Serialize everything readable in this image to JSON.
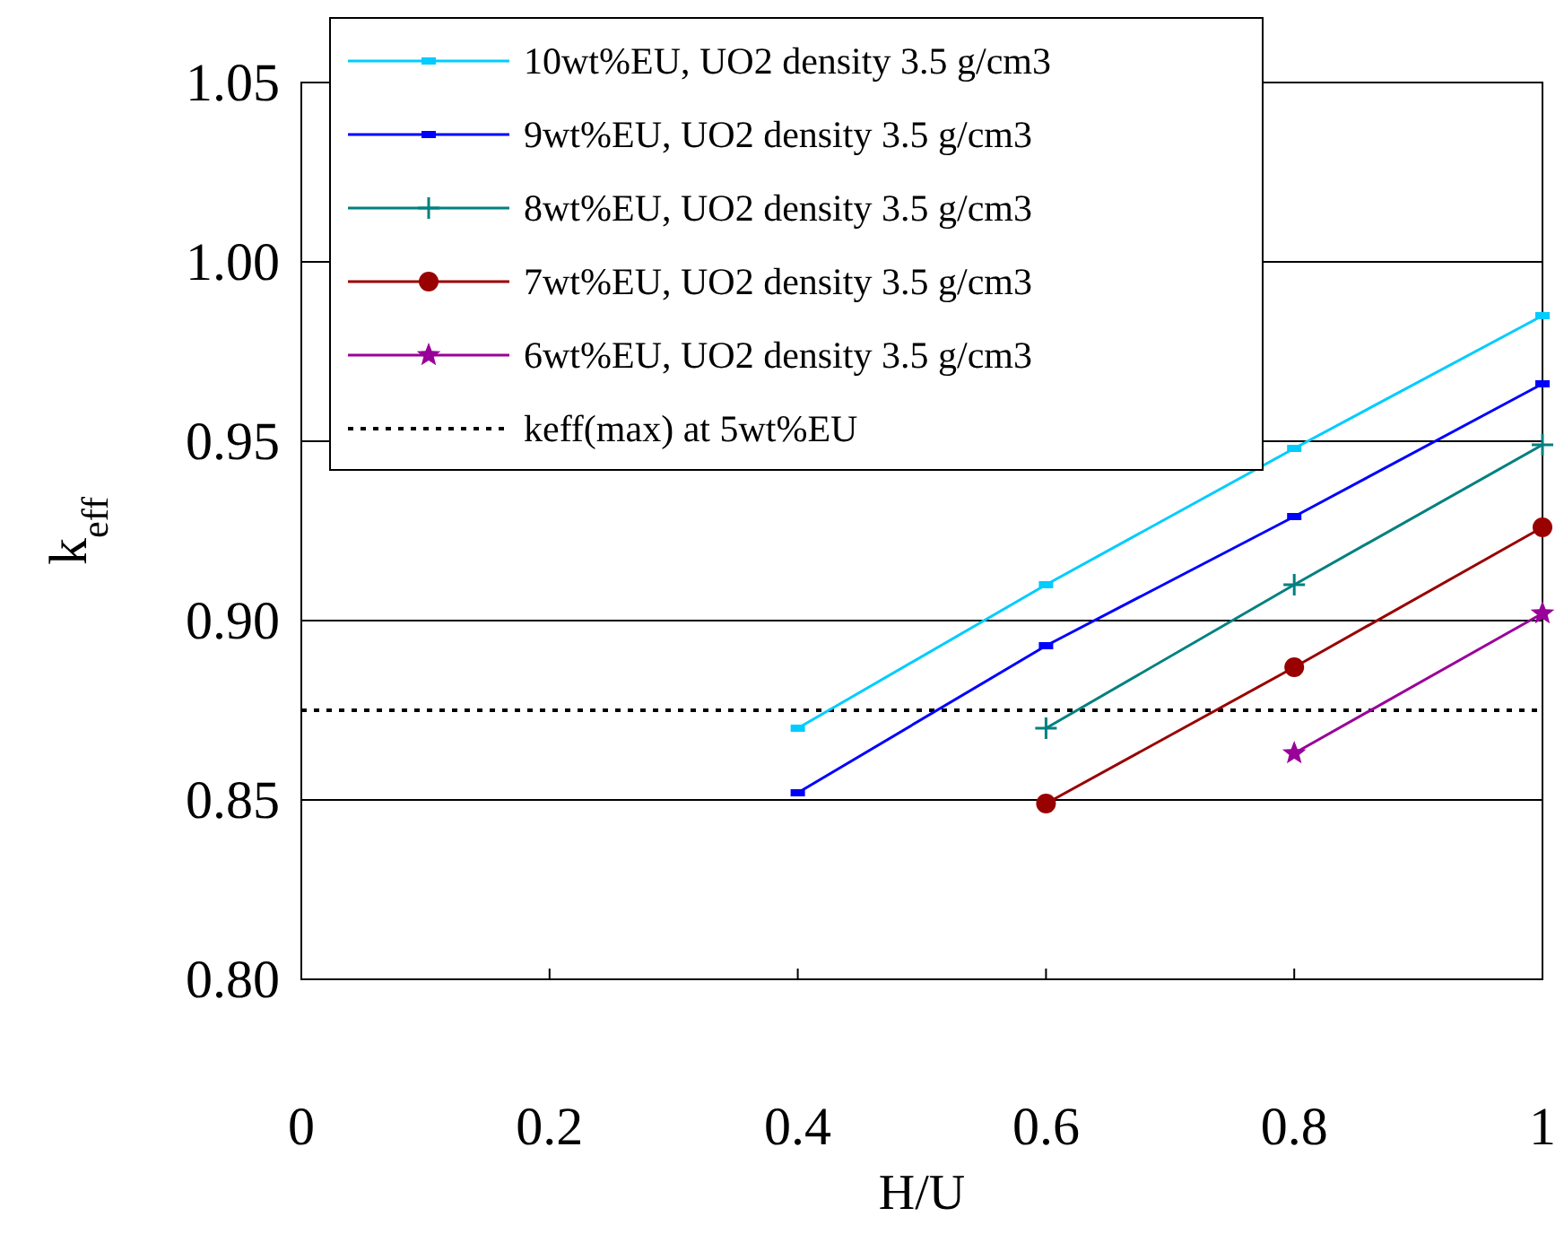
{
  "chart_data": {
    "type": "line",
    "xlabel": "H/U",
    "ylabel": "k$_{eff}$",
    "xlim": [
      0,
      1
    ],
    "xticks": [
      0,
      0.2,
      0.4,
      0.6,
      0.8,
      1
    ],
    "ylim": [
      0.8,
      1.05
    ],
    "yticks": [
      {
        "value": 0.8,
        "label": "0.80"
      },
      {
        "value": 0.85,
        "label": "0.85"
      },
      {
        "value": 0.9,
        "label": "0.90"
      },
      {
        "value": 0.95,
        "label": "0.95"
      },
      {
        "value": 1.0,
        "label": "1.00"
      },
      {
        "value": 1.05,
        "label": "1.05"
      }
    ],
    "grid": "y",
    "legend": "top",
    "series": [
      {
        "name": "10wt%EU, UO2 density 3.5 g/cm3",
        "color": "#00ccff",
        "marker": "square",
        "x": [
          0.4,
          0.6,
          0.8,
          1.0
        ],
        "values": [
          0.87,
          0.91,
          0.948,
          0.985
        ]
      },
      {
        "name": "9wt%EU, UO2 density 3.5 g/cm3",
        "color": "#0000ff",
        "marker": "square",
        "x": [
          0.4,
          0.6,
          0.8,
          1.0
        ],
        "values": [
          0.852,
          0.893,
          0.929,
          0.966
        ]
      },
      {
        "name": "8wt%EU, UO2 density 3.5 g/cm3",
        "color": "#008080",
        "marker": "cross",
        "x": [
          0.6,
          0.8,
          1.0
        ],
        "values": [
          0.87,
          0.91,
          0.949
        ]
      },
      {
        "name": "7wt%EU, UO2 density 3.5 g/cm3",
        "color": "#990000",
        "marker": "circle",
        "x": [
          0.6,
          0.8,
          1.0
        ],
        "values": [
          0.849,
          0.887,
          0.926
        ]
      },
      {
        "name": "6wt%EU, UO2 density 3.5 g/cm3",
        "color": "#990099",
        "marker": "star",
        "x": [
          0.8,
          1.0
        ],
        "values": [
          0.863,
          0.902
        ]
      }
    ],
    "ref_lines": [
      {
        "axis": "y",
        "value": 0.875,
        "label": "keff(max) at 5wt%EU",
        "color": "#000000",
        "line_style": "dotted"
      }
    ]
  }
}
